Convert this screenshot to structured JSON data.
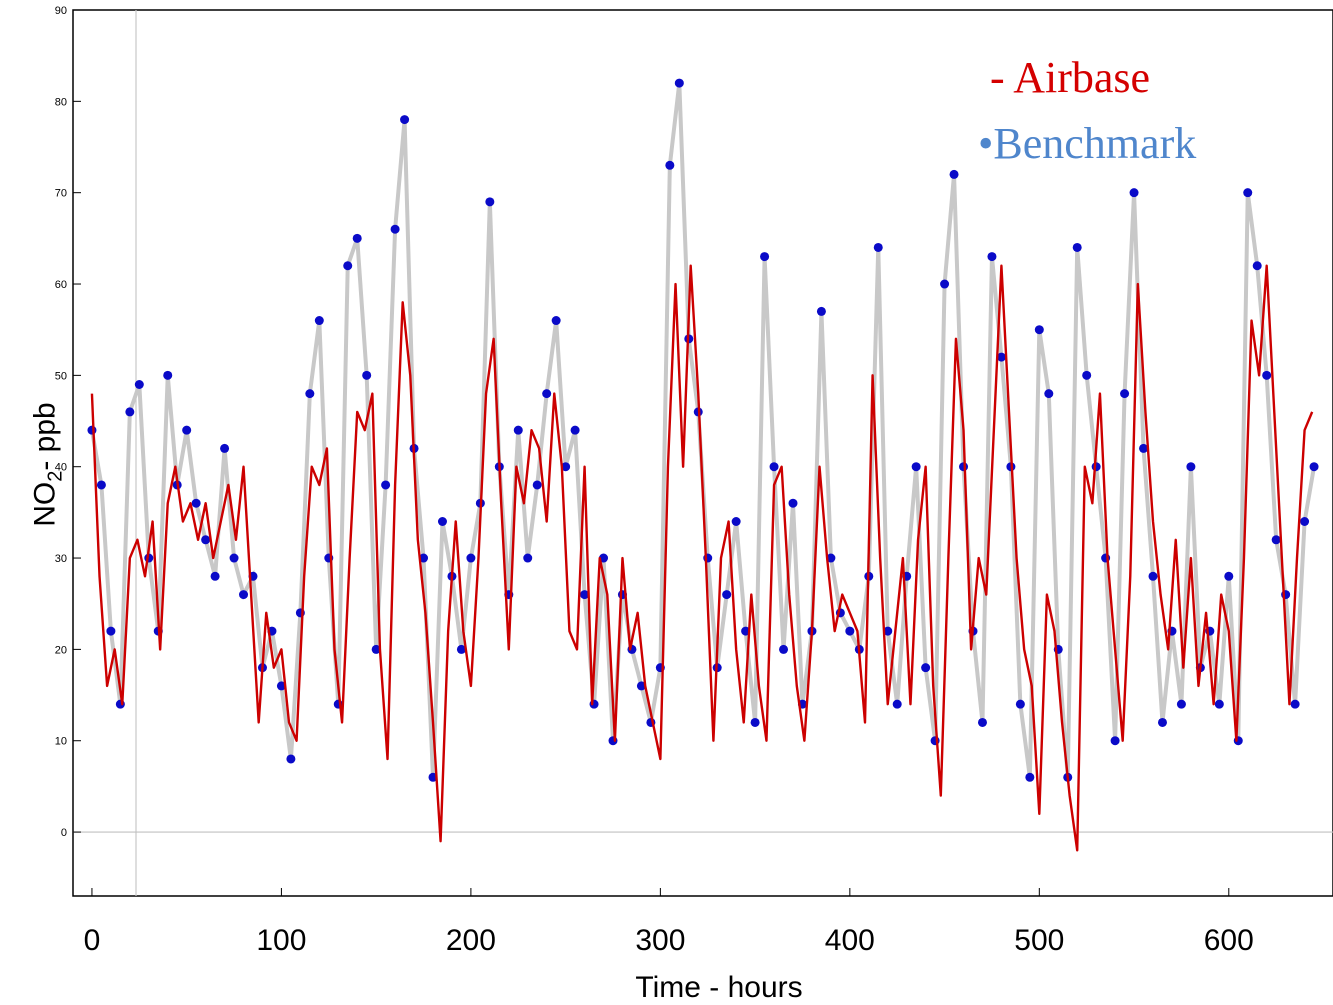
{
  "chart_data": {
    "type": "line",
    "xlabel": "Time - hours",
    "ylabel_main": "NO",
    "ylabel_sub": "2",
    "ylabel_rest": "- ppb",
    "xlim": [
      -10,
      655
    ],
    "ylim": [
      -7,
      90
    ],
    "x_ticks": [
      0,
      100,
      200,
      300,
      400,
      500,
      600
    ],
    "y_ticks": [
      0,
      10,
      20,
      30,
      40,
      50,
      60,
      70,
      80,
      90
    ],
    "grid": false,
    "legend": {
      "airbase": "- Airbase",
      "benchmark": "•Benchmark"
    },
    "colors": {
      "airbase": "#cc0000",
      "benchmark": "#0a0ac8",
      "benchmark_line": "#c8c8c8",
      "zero_line": "#c0c0c0"
    },
    "series": [
      {
        "name": "Benchmark",
        "style": "points",
        "x": [
          0,
          5,
          10,
          15,
          20,
          25,
          30,
          35,
          40,
          45,
          50,
          55,
          60,
          65,
          70,
          75,
          80,
          85,
          90,
          95,
          100,
          105,
          110,
          115,
          120,
          125,
          130,
          135,
          140,
          145,
          150,
          155,
          160,
          165,
          170,
          175,
          180,
          185,
          190,
          195,
          200,
          205,
          210,
          215,
          220,
          225,
          230,
          235,
          240,
          245,
          250,
          255,
          260,
          265,
          270,
          275,
          280,
          285,
          290,
          295,
          300,
          305,
          310,
          315,
          320,
          325,
          330,
          335,
          340,
          345,
          350,
          355,
          360,
          365,
          370,
          375,
          380,
          385,
          390,
          395,
          400,
          405,
          410,
          415,
          420,
          425,
          430,
          435,
          440,
          445,
          450,
          455,
          460,
          465,
          470,
          475,
          480,
          485,
          490,
          495,
          500,
          505,
          510,
          515,
          520,
          525,
          530,
          535,
          540,
          545,
          550,
          555,
          560,
          565,
          570,
          575,
          580,
          585,
          590,
          595,
          600,
          605,
          610,
          615,
          620,
          625,
          630,
          635,
          640,
          645
        ],
        "values": [
          44,
          38,
          22,
          14,
          46,
          49,
          30,
          22,
          50,
          38,
          44,
          36,
          32,
          28,
          42,
          30,
          26,
          28,
          18,
          22,
          16,
          8,
          24,
          48,
          56,
          30,
          14,
          62,
          65,
          50,
          20,
          38,
          66,
          78,
          42,
          30,
          6,
          34,
          28,
          20,
          30,
          36,
          69,
          40,
          26,
          44,
          30,
          38,
          48,
          56,
          40,
          44,
          26,
          14,
          30,
          10,
          26,
          20,
          16,
          12,
          18,
          73,
          82,
          54,
          46,
          30,
          18,
          26,
          34,
          22,
          12,
          63,
          40,
          20,
          36,
          14,
          22,
          57,
          30,
          24,
          22,
          20,
          28,
          64,
          22,
          14,
          28,
          40,
          18,
          10,
          60,
          72,
          40,
          22,
          12,
          63,
          52,
          40,
          14,
          6,
          55,
          48,
          20,
          6,
          64,
          50,
          40,
          30,
          10,
          48,
          70,
          42,
          28,
          12,
          22,
          14,
          40,
          18,
          22,
          14,
          28,
          10,
          70,
          62,
          50,
          32,
          26,
          14,
          34,
          40
        ]
      },
      {
        "name": "Airbase",
        "style": "line",
        "x": [
          0,
          4,
          8,
          12,
          16,
          20,
          24,
          28,
          32,
          36,
          40,
          44,
          48,
          52,
          56,
          60,
          64,
          68,
          72,
          76,
          80,
          84,
          88,
          92,
          96,
          100,
          104,
          108,
          112,
          116,
          120,
          124,
          128,
          132,
          136,
          140,
          144,
          148,
          152,
          156,
          160,
          164,
          168,
          172,
          176,
          180,
          184,
          188,
          192,
          196,
          200,
          204,
          208,
          212,
          216,
          220,
          224,
          228,
          232,
          236,
          240,
          244,
          248,
          252,
          256,
          260,
          264,
          268,
          272,
          276,
          280,
          284,
          288,
          292,
          296,
          300,
          304,
          308,
          312,
          316,
          320,
          324,
          328,
          332,
          336,
          340,
          344,
          348,
          352,
          356,
          360,
          364,
          368,
          372,
          376,
          380,
          384,
          388,
          392,
          396,
          400,
          404,
          408,
          412,
          416,
          420,
          424,
          428,
          432,
          436,
          440,
          444,
          448,
          452,
          456,
          460,
          464,
          468,
          472,
          476,
          480,
          484,
          488,
          492,
          496,
          500,
          504,
          508,
          512,
          516,
          520,
          524,
          528,
          532,
          536,
          540,
          544,
          548,
          552,
          556,
          560,
          564,
          568,
          572,
          576,
          580,
          584,
          588,
          592,
          596,
          600,
          604,
          608,
          612,
          616,
          620,
          624,
          628,
          632,
          636,
          640,
          644
        ],
        "values": [
          48,
          28,
          16,
          20,
          14,
          30,
          32,
          28,
          34,
          20,
          36,
          40,
          34,
          36,
          32,
          36,
          30,
          34,
          38,
          32,
          40,
          26,
          12,
          24,
          18,
          20,
          12,
          10,
          28,
          40,
          38,
          42,
          20,
          12,
          30,
          46,
          44,
          48,
          20,
          8,
          38,
          58,
          50,
          32,
          24,
          12,
          -1,
          22,
          34,
          22,
          16,
          30,
          48,
          54,
          36,
          20,
          40,
          36,
          44,
          42,
          34,
          48,
          40,
          22,
          20,
          40,
          14,
          30,
          26,
          10,
          30,
          20,
          24,
          16,
          12,
          8,
          40,
          60,
          40,
          62,
          48,
          30,
          10,
          30,
          34,
          20,
          12,
          26,
          16,
          10,
          38,
          40,
          26,
          16,
          10,
          22,
          40,
          30,
          22,
          26,
          24,
          22,
          12,
          50,
          30,
          14,
          22,
          30,
          14,
          32,
          40,
          16,
          4,
          30,
          54,
          44,
          20,
          30,
          26,
          44,
          62,
          46,
          30,
          20,
          16,
          2,
          26,
          22,
          12,
          4,
          -2,
          40,
          36,
          48,
          30,
          20,
          10,
          28,
          60,
          46,
          34,
          26,
          20,
          32,
          18,
          30,
          16,
          24,
          14,
          26,
          22,
          10,
          30,
          56,
          50,
          62,
          46,
          30,
          14,
          30,
          44,
          46
        ]
      }
    ]
  }
}
